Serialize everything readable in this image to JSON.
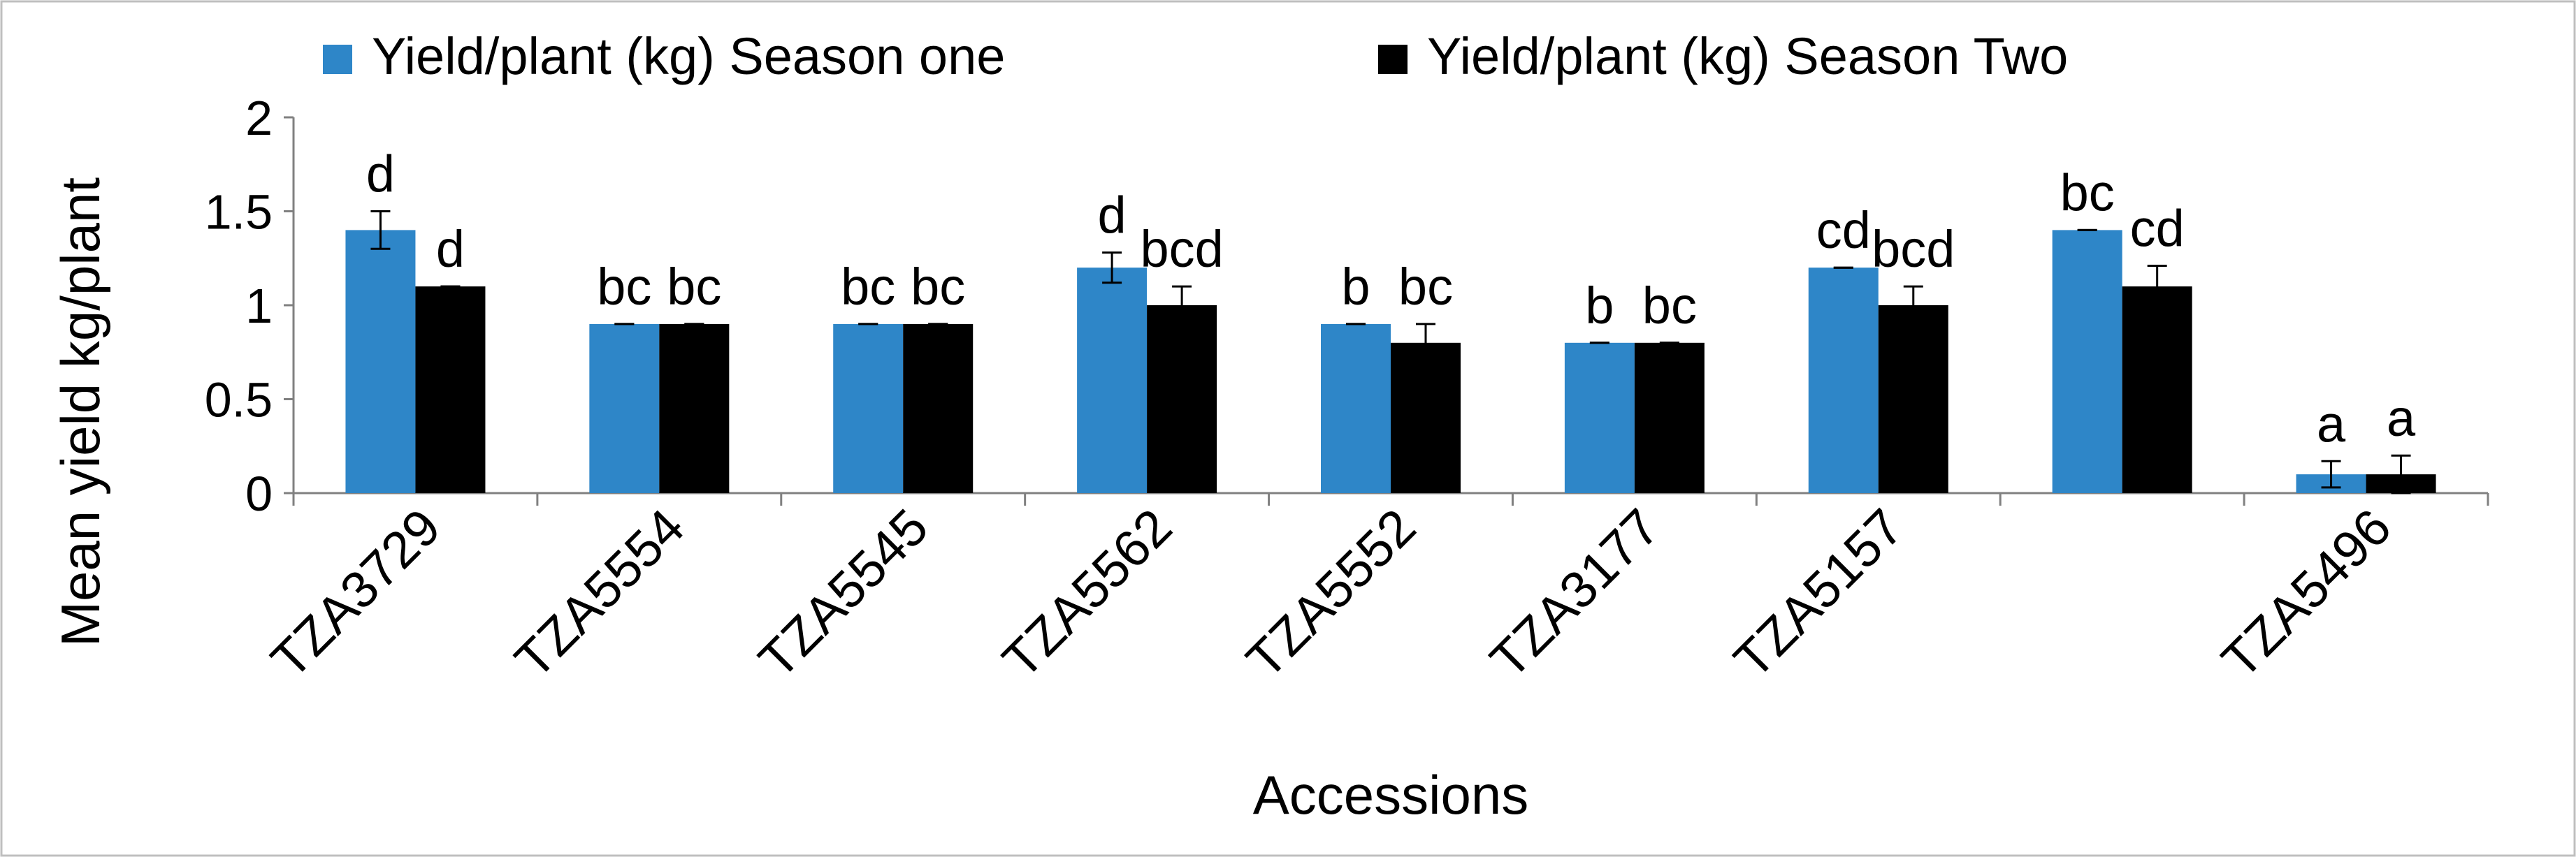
{
  "chart_data": {
    "type": "bar",
    "title": "",
    "xlabel": "Accessions",
    "ylabel": "Mean yield kg/plant",
    "ylim": [
      0,
      2
    ],
    "yticks": [
      0,
      0.5,
      1,
      1.5,
      2
    ],
    "ytick_labels": [
      "0",
      "0.5",
      "1",
      "1.5",
      "2"
    ],
    "grid": false,
    "legend_position": "top",
    "categories": [
      "TZA3729",
      "TZA5554",
      "TZA5545",
      "TZA5562",
      "TZA5552",
      "TZA3177",
      "TZA5157",
      "",
      "TZA5496"
    ],
    "series": [
      {
        "name": "Yield/plant (kg) Season one",
        "color": "#2E86C8",
        "values": [
          1.4,
          0.9,
          0.9,
          1.2,
          0.9,
          0.8,
          1.2,
          1.4,
          0.1
        ],
        "errors": [
          0.1,
          0,
          0,
          0.08,
          0,
          0,
          0,
          0,
          0.07
        ],
        "letters": [
          "d",
          "bc",
          "bc",
          "d",
          "b",
          "b",
          "cd",
          "bc",
          "a"
        ]
      },
      {
        "name": "Yield/plant (kg) Season Two",
        "color": "#000000",
        "values": [
          1.1,
          0.9,
          0.9,
          1.0,
          0.8,
          0.8,
          1.0,
          1.1,
          0.1
        ],
        "errors": [
          0,
          0,
          0,
          0.1,
          0.1,
          0,
          0.1,
          0.11,
          0.1
        ],
        "letters": [
          "d",
          "bc",
          "bc",
          "bcd",
          "bc",
          "bc",
          "bcd",
          "cd",
          "a"
        ]
      }
    ]
  }
}
